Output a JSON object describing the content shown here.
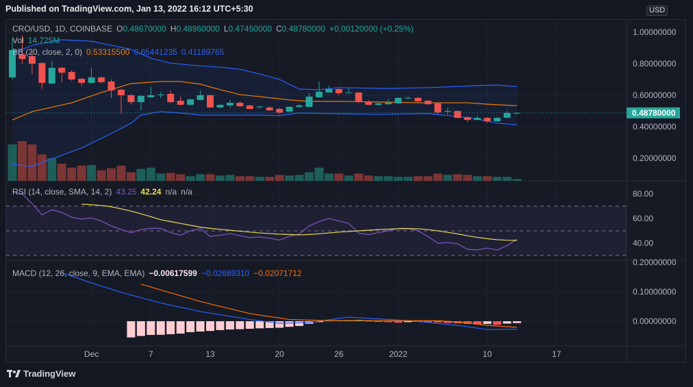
{
  "header": {
    "published": "Published on TradingView.com, Jan 13, 2022 16:12 UTC+5:30"
  },
  "footer": {
    "brand": "TradingView",
    "logo_icon": "tradingview-logo-icon"
  },
  "colors": {
    "up": "#26a69a",
    "down": "#ef5350",
    "bb_basis": "#f57c00",
    "bb_band": "#2962ff",
    "rsi": "#7e57c2",
    "rsi_sma": "#e8dc5a",
    "macd": "#2962ff",
    "signal": "#ff6d00",
    "price_label": "#26a69a"
  },
  "legend": {
    "symbol": "CRO/USD, 1D, COINBASE",
    "o_label": "O",
    "o": "0.48670000",
    "h_label": "H",
    "h": "0.48960000",
    "l_label": "L",
    "l": "0.47450000",
    "c_label": "C",
    "c": "0.48780000",
    "change": "+0.00120000 (+0.25%)",
    "vol_label": "Vol",
    "vol": "14.725M",
    "bb_label": "BB (20, close, 2, 0)",
    "bb_basis": "0.53315500",
    "bb_upper": "0.65441235",
    "bb_lower": "0.41189765",
    "rsi_label": "RSI (14, close, SMA, 14, 2)",
    "rsi": "43.25",
    "rsi_sma": "42.24",
    "na1": "n/a",
    "na2": "n/a",
    "macd_label": "MACD (12, 26, close, 9, EMA, EMA)",
    "macd_hist": "−0.00617599",
    "macd": "−0.02689310",
    "macd_signal": "−0.02071712"
  },
  "currency_badge": "USD",
  "chart_data": {
    "type": "candlestick",
    "symbol": "CRO/USD",
    "interval": "1D",
    "exchange": "COINBASE",
    "price_axis": {
      "ticks": [
        "1.00000000",
        "0.80000000",
        "0.60000000",
        "0.40000000",
        "0.20000000"
      ],
      "tick_values": [
        1.0,
        0.8,
        0.6,
        0.4,
        0.2
      ],
      "last_price": "0.48780000",
      "last_value": 0.4878
    },
    "time_axis": {
      "ticks": [
        {
          "label": "Dec",
          "date": "2021-12-01"
        },
        {
          "label": "7",
          "date": "2021-12-07"
        },
        {
          "label": "13",
          "date": "2021-12-13"
        },
        {
          "label": "20",
          "date": "2021-12-20"
        },
        {
          "label": "26",
          "date": "2021-12-26"
        },
        {
          "label": "2022",
          "date": "2022-01-01"
        },
        {
          "label": "10",
          "date": "2022-01-10"
        },
        {
          "label": "17",
          "date": "2022-01-17"
        }
      ]
    },
    "grid": true,
    "candles_fields": [
      "date",
      "open",
      "high",
      "low",
      "close",
      "volume_M"
    ],
    "candles": [
      [
        "2021-11-23",
        0.713,
        0.96,
        0.7,
        0.887,
        275
      ],
      [
        "2021-11-24",
        0.86,
        0.98,
        0.8,
        0.83,
        300
      ],
      [
        "2021-11-25",
        0.848,
        0.87,
        0.735,
        0.8,
        275
      ],
      [
        "2021-11-26",
        0.804,
        0.81,
        0.64,
        0.678,
        200
      ],
      [
        "2021-11-27",
        0.674,
        0.817,
        0.67,
        0.774,
        170
      ],
      [
        "2021-11-28",
        0.774,
        0.78,
        0.683,
        0.743,
        130
      ],
      [
        "2021-11-29",
        0.748,
        0.76,
        0.69,
        0.7,
        100
      ],
      [
        "2021-11-30",
        0.704,
        0.71,
        0.66,
        0.678,
        115
      ],
      [
        "2021-12-01",
        0.678,
        0.774,
        0.675,
        0.713,
        120
      ],
      [
        "2021-12-02",
        0.713,
        0.72,
        0.675,
        0.683,
        80
      ],
      [
        "2021-12-03",
        0.687,
        0.7,
        0.583,
        0.63,
        95
      ],
      [
        "2021-12-04",
        0.635,
        0.64,
        0.483,
        0.6,
        115
      ],
      [
        "2021-12-05",
        0.6,
        0.61,
        0.54,
        0.556,
        65
      ],
      [
        "2021-12-06",
        0.556,
        0.6,
        0.504,
        0.596,
        90
      ],
      [
        "2021-12-07",
        0.587,
        0.652,
        0.585,
        0.6,
        100
      ],
      [
        "2021-12-08",
        0.602,
        0.62,
        0.58,
        0.604,
        55
      ],
      [
        "2021-12-09",
        0.609,
        0.63,
        0.55,
        0.556,
        60
      ],
      [
        "2021-12-10",
        0.565,
        0.59,
        0.535,
        0.539,
        50
      ],
      [
        "2021-12-11",
        0.539,
        0.576,
        0.535,
        0.574,
        35
      ],
      [
        "2021-12-12",
        0.57,
        0.63,
        0.565,
        0.6,
        50
      ],
      [
        "2021-12-13",
        0.6,
        0.602,
        0.52,
        0.522,
        50
      ],
      [
        "2021-12-14",
        0.522,
        0.54,
        0.518,
        0.539,
        40
      ],
      [
        "2021-12-15",
        0.535,
        0.57,
        0.52,
        0.552,
        45
      ],
      [
        "2021-12-16",
        0.552,
        0.56,
        0.525,
        0.53,
        35
      ],
      [
        "2021-12-17",
        0.535,
        0.54,
        0.51,
        0.513,
        35
      ],
      [
        "2021-12-18",
        0.524,
        0.535,
        0.515,
        0.528,
        30
      ],
      [
        "2021-12-19",
        0.522,
        0.53,
        0.5,
        0.504,
        30
      ],
      [
        "2021-12-20",
        0.513,
        0.52,
        0.48,
        0.49,
        45
      ],
      [
        "2021-12-21",
        0.496,
        0.53,
        0.49,
        0.526,
        40
      ],
      [
        "2021-12-22",
        0.526,
        0.545,
        0.52,
        0.535,
        45
      ],
      [
        "2021-12-23",
        0.526,
        0.613,
        0.524,
        0.591,
        65
      ],
      [
        "2021-12-24",
        0.587,
        0.687,
        0.585,
        0.622,
        100
      ],
      [
        "2021-12-25",
        0.617,
        0.66,
        0.615,
        0.639,
        55
      ],
      [
        "2021-12-26",
        0.639,
        0.642,
        0.6,
        0.613,
        55
      ],
      [
        "2021-12-27",
        0.616,
        0.648,
        0.614,
        0.617,
        40
      ],
      [
        "2021-12-28",
        0.617,
        0.62,
        0.55,
        0.556,
        55
      ],
      [
        "2021-12-29",
        0.56,
        0.57,
        0.535,
        0.539,
        40
      ],
      [
        "2021-12-30",
        0.539,
        0.56,
        0.535,
        0.548,
        35
      ],
      [
        "2021-12-31",
        0.543,
        0.575,
        0.54,
        0.552,
        35
      ],
      [
        "2022-01-01",
        0.548,
        0.585,
        0.546,
        0.583,
        30
      ],
      [
        "2022-01-02",
        0.582,
        0.59,
        0.576,
        0.584,
        30
      ],
      [
        "2022-01-03",
        0.583,
        0.587,
        0.556,
        0.561,
        35
      ],
      [
        "2022-01-04",
        0.565,
        0.57,
        0.54,
        0.543,
        35
      ],
      [
        "2022-01-05",
        0.548,
        0.555,
        0.48,
        0.491,
        55
      ],
      [
        "2022-01-06",
        0.499,
        0.52,
        0.48,
        0.5,
        45
      ],
      [
        "2022-01-07",
        0.5,
        0.502,
        0.452,
        0.456,
        50
      ],
      [
        "2022-01-08",
        0.461,
        0.465,
        0.43,
        0.443,
        45
      ],
      [
        "2022-01-09",
        0.443,
        0.47,
        0.44,
        0.456,
        35
      ],
      [
        "2022-01-10",
        0.456,
        0.46,
        0.425,
        0.435,
        35
      ],
      [
        "2022-01-11",
        0.435,
        0.462,
        0.432,
        0.456,
        30
      ],
      [
        "2022-01-12",
        0.457,
        0.5,
        0.455,
        0.487,
        30
      ],
      [
        "2022-01-13",
        0.4867,
        0.4896,
        0.4745,
        0.4878,
        14.725
      ]
    ],
    "bollinger": {
      "upper": [
        [
          "2021-11-23",
          0.865
        ],
        [
          "2021-11-25",
          0.917
        ],
        [
          "2021-11-28",
          0.952
        ],
        [
          "2021-12-01",
          0.943
        ],
        [
          "2021-12-03",
          0.917
        ],
        [
          "2021-12-05",
          0.891
        ],
        [
          "2021-12-07",
          0.835
        ],
        [
          "2021-12-09",
          0.804
        ],
        [
          "2021-12-11",
          0.791
        ],
        [
          "2021-12-14",
          0.778
        ],
        [
          "2021-12-16",
          0.765
        ],
        [
          "2021-12-18",
          0.735
        ],
        [
          "2021-12-20",
          0.7
        ],
        [
          "2021-12-22",
          0.639
        ],
        [
          "2021-12-24",
          0.635
        ],
        [
          "2021-12-26",
          0.648
        ],
        [
          "2021-12-31",
          0.643
        ],
        [
          "2022-01-04",
          0.648
        ],
        [
          "2022-01-09",
          0.661
        ],
        [
          "2022-01-11",
          0.665
        ],
        [
          "2022-01-13",
          0.6544
        ]
      ],
      "basis": [
        [
          "2021-11-23",
          0.443
        ],
        [
          "2021-11-25",
          0.496
        ],
        [
          "2021-11-29",
          0.552
        ],
        [
          "2021-12-02",
          0.617
        ],
        [
          "2021-12-05",
          0.674
        ],
        [
          "2021-12-08",
          0.687
        ],
        [
          "2021-12-10",
          0.687
        ],
        [
          "2021-12-12",
          0.67
        ],
        [
          "2021-12-14",
          0.635
        ],
        [
          "2021-12-16",
          0.604
        ],
        [
          "2021-12-18",
          0.591
        ],
        [
          "2021-12-21",
          0.57
        ],
        [
          "2021-12-23",
          0.561
        ],
        [
          "2021-12-26",
          0.561
        ],
        [
          "2021-12-30",
          0.557
        ],
        [
          "2022-01-03",
          0.552
        ],
        [
          "2022-01-08",
          0.552
        ],
        [
          "2022-01-10",
          0.543
        ],
        [
          "2022-01-13",
          0.5332
        ]
      ],
      "lower": [
        [
          "2021-11-23",
          0.161
        ],
        [
          "2021-11-25",
          0.148
        ],
        [
          "2021-11-27",
          0.196
        ],
        [
          "2021-11-30",
          0.265
        ],
        [
          "2021-12-03",
          0.357
        ],
        [
          "2021-12-05",
          0.422
        ],
        [
          "2021-12-06",
          0.474
        ],
        [
          "2021-12-08",
          0.496
        ],
        [
          "2021-12-10",
          0.487
        ],
        [
          "2021-12-12",
          0.474
        ],
        [
          "2021-12-15",
          0.474
        ],
        [
          "2021-12-18",
          0.474
        ],
        [
          "2021-12-20",
          0.47
        ],
        [
          "2021-12-22",
          0.487
        ],
        [
          "2021-12-25",
          0.483
        ],
        [
          "2021-12-30",
          0.478
        ],
        [
          "2022-01-04",
          0.483
        ],
        [
          "2022-01-07",
          0.465
        ],
        [
          "2022-01-09",
          0.448
        ],
        [
          "2022-01-11",
          0.422
        ],
        [
          "2022-01-13",
          0.4119
        ]
      ]
    },
    "rsi": {
      "ticks": [
        "80.00",
        "60.00",
        "40.00"
      ],
      "tick_values": [
        80,
        60,
        40
      ],
      "bands": [
        70,
        50,
        30
      ],
      "values": [
        82,
        80,
        72,
        63,
        67,
        65,
        61,
        59.5,
        60.5,
        58,
        54,
        51,
        48.5,
        51,
        52,
        52,
        48.5,
        46.5,
        50,
        52,
        45.5,
        46.5,
        47.8,
        46,
        44.5,
        45,
        44,
        42.5,
        45.5,
        47.5,
        54,
        57.5,
        60,
        58,
        56,
        48,
        47,
        48.5,
        50,
        52,
        52,
        50,
        45.5,
        40,
        40.5,
        39.5,
        35,
        34.5,
        36,
        34.4,
        38,
        43.25
      ],
      "sma": [
        null,
        null,
        null,
        null,
        null,
        null,
        null,
        71.7,
        71.2,
        70.6,
        69.5,
        67.8,
        66,
        63.8,
        61.5,
        59,
        57.5,
        56,
        54.5,
        53,
        52,
        51.2,
        50.5,
        49.7,
        49,
        48.3,
        47.8,
        47.3,
        47,
        46.7,
        47,
        47.6,
        48.3,
        49,
        49.5,
        50,
        50.5,
        51,
        51.3,
        51.7,
        51.8,
        51.7,
        51,
        50,
        48.8,
        47.5,
        46,
        44.7,
        43.6,
        42.8,
        42.4,
        42.24
      ]
    },
    "macd": {
      "ticks": [
        "0.20000000",
        "0.10000000",
        "0.00000000"
      ],
      "tick_values": [
        0.2,
        0.1,
        0.0
      ],
      "histogram_start": "2021-12-05",
      "histogram": [
        -0.055,
        -0.05,
        -0.0465,
        -0.046,
        -0.044,
        -0.042,
        -0.037,
        -0.035,
        -0.033,
        -0.03,
        -0.028,
        -0.027,
        -0.0256,
        -0.024,
        -0.023,
        -0.022,
        -0.019,
        -0.016,
        -0.0085,
        -0.003,
        0.002,
        0.003,
        0.004,
        0.005,
        0.002,
        -0.001,
        -0.003,
        -0.005,
        -0.003,
        -0.002,
        -0.003,
        -0.004,
        -0.006,
        -0.007,
        -0.009,
        -0.011,
        -0.009,
        -0.012,
        -0.008,
        -0.0062
      ],
      "macd_line": [
        [
          "2021-11-28",
          0.165
        ],
        [
          "2021-12-01",
          0.13
        ],
        [
          "2021-12-04",
          0.098
        ],
        [
          "2021-12-08",
          0.062
        ],
        [
          "2021-12-12",
          0.033
        ],
        [
          "2021-12-17",
          0.006
        ],
        [
          "2021-12-20",
          -0.007
        ],
        [
          "2021-12-23",
          -0.004
        ],
        [
          "2021-12-27",
          0.014
        ],
        [
          "2022-01-02",
          0.002
        ],
        [
          "2022-01-07",
          -0.014
        ],
        [
          "2022-01-10",
          -0.028
        ],
        [
          "2022-01-13",
          -0.0269
        ]
      ],
      "signal_line": [
        [
          "2021-12-06",
          0.126
        ],
        [
          "2021-12-12",
          0.067
        ],
        [
          "2021-12-17",
          0.026
        ],
        [
          "2021-12-21",
          0.006
        ],
        [
          "2021-12-25",
          0.002
        ],
        [
          "2022-01-05",
          0.002
        ],
        [
          "2022-01-08",
          -0.005
        ],
        [
          "2022-01-10",
          -0.014
        ],
        [
          "2022-01-13",
          -0.0207
        ]
      ]
    }
  }
}
